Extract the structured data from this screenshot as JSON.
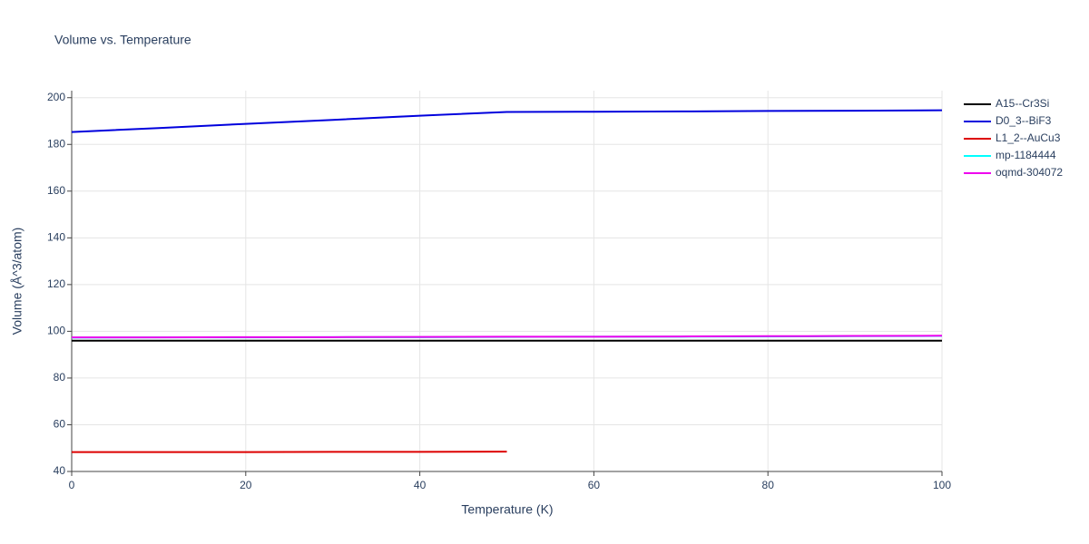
{
  "chart_data": {
    "type": "line",
    "title": "Volume vs. Temperature",
    "xlabel": "Temperature (K)",
    "ylabel": "Volume (Å^3/atom)",
    "x": [
      0,
      10,
      20,
      30,
      40,
      50,
      60,
      70,
      80,
      90,
      100
    ],
    "series": [
      {
        "name": "A15--Cr3Si",
        "color": "#000000",
        "values": [
          96.0,
          96.0,
          96.0,
          96.0,
          96.0,
          96.0,
          96.0,
          96.0,
          96.0,
          96.0,
          96.0
        ]
      },
      {
        "name": "D0_3--BiF3",
        "color": "#0000dd",
        "values": [
          185.3,
          187.0,
          188.8,
          190.5,
          192.3,
          193.9,
          194.0,
          194.1,
          194.3,
          194.4,
          194.6
        ]
      },
      {
        "name": "L1_2--AuCu3",
        "color": "#dd0000",
        "values": [
          48.3,
          48.3,
          48.3,
          48.4,
          48.4,
          48.5,
          null,
          null,
          null,
          null,
          null
        ]
      },
      {
        "name": "mp-1184444",
        "color": "#00ffff",
        "values": [
          97.3,
          97.4,
          97.4,
          97.5,
          97.5,
          97.6,
          97.7,
          97.7,
          97.8,
          97.9,
          98.0
        ]
      },
      {
        "name": "oqmd-304072",
        "color": "#ee00ee",
        "values": [
          97.4,
          97.4,
          97.5,
          97.5,
          97.6,
          97.7,
          97.7,
          97.8,
          97.9,
          98.0,
          98.1
        ]
      }
    ],
    "xlim": [
      0,
      100
    ],
    "xticks": [
      0,
      20,
      40,
      60,
      80,
      100
    ],
    "ylim": [
      40,
      203
    ],
    "yticks": [
      40,
      60,
      80,
      100,
      120,
      140,
      160,
      180,
      200
    ],
    "grid": true,
    "legend": "right"
  }
}
